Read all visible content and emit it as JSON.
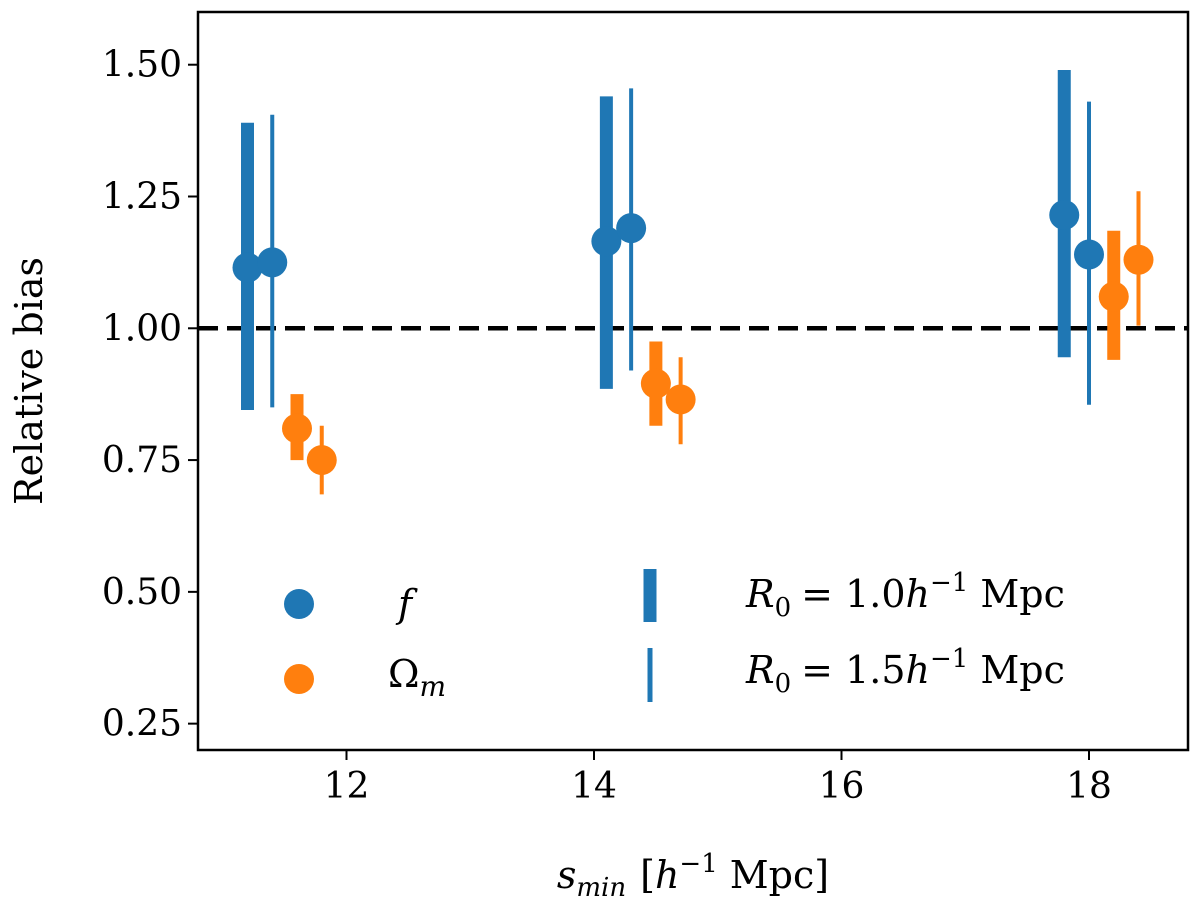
{
  "chart_data": {
    "type": "scatter",
    "subtype": "errorbar",
    "title": "",
    "xlabel": {
      "var": "s",
      "sub": "min",
      "unit_open": "[",
      "h": "h",
      "exp": "−1",
      "unit": "Mpc",
      "unit_close": "]"
    },
    "ylabel": "Relative bias",
    "xlim": [
      10.8,
      18.8
    ],
    "ylim": [
      0.2,
      1.6
    ],
    "xticks": [
      12,
      14,
      16,
      18
    ],
    "xtick_labels": [
      "12",
      "14",
      "16",
      "18"
    ],
    "yticks": [
      0.25,
      0.5,
      0.75,
      1.0,
      1.25,
      1.5
    ],
    "ytick_labels": [
      "0.25",
      "0.50",
      "0.75",
      "1.00",
      "1.25",
      "1.50"
    ],
    "reference_line": {
      "y": 1.0,
      "style": "dashed",
      "color": "#000000"
    },
    "colors": {
      "f": "#1f77b4",
      "omega_m": "#ff7f0e"
    },
    "series": [
      {
        "name": "f",
        "param": "f",
        "R0": "1.0",
        "style": "thick",
        "color": "#1f77b4",
        "points": [
          {
            "x": 11.2,
            "y": 1.115,
            "ylo": 0.845,
            "yhi": 1.39
          },
          {
            "x": 14.1,
            "y": 1.165,
            "ylo": 0.885,
            "yhi": 1.44
          },
          {
            "x": 17.8,
            "y": 1.215,
            "ylo": 0.945,
            "yhi": 1.49
          }
        ]
      },
      {
        "name": "f",
        "param": "f",
        "R0": "1.5",
        "style": "thin",
        "color": "#1f77b4",
        "points": [
          {
            "x": 11.4,
            "y": 1.125,
            "ylo": 0.85,
            "yhi": 1.405
          },
          {
            "x": 14.3,
            "y": 1.19,
            "ylo": 0.92,
            "yhi": 1.455
          },
          {
            "x": 18.0,
            "y": 1.14,
            "ylo": 0.855,
            "yhi": 1.43
          }
        ]
      },
      {
        "name": "Ωm",
        "param": "omega_m",
        "R0": "1.0",
        "style": "thick",
        "color": "#ff7f0e",
        "points": [
          {
            "x": 11.6,
            "y": 0.81,
            "ylo": 0.75,
            "yhi": 0.875
          },
          {
            "x": 14.5,
            "y": 0.895,
            "ylo": 0.815,
            "yhi": 0.975
          },
          {
            "x": 18.2,
            "y": 1.06,
            "ylo": 0.94,
            "yhi": 1.185
          }
        ]
      },
      {
        "name": "Ωm",
        "param": "omega_m",
        "R0": "1.5",
        "style": "thin",
        "color": "#ff7f0e",
        "points": [
          {
            "x": 11.8,
            "y": 0.75,
            "ylo": 0.685,
            "yhi": 0.815
          },
          {
            "x": 14.7,
            "y": 0.865,
            "ylo": 0.78,
            "yhi": 0.945
          },
          {
            "x": 18.4,
            "y": 1.13,
            "ylo": 1.005,
            "yhi": 1.26
          }
        ]
      }
    ],
    "legend": {
      "placement": "lower",
      "markers": [
        {
          "label_main": "f",
          "label_sub": "",
          "color": "#1f77b4"
        },
        {
          "label_main": "Ω",
          "label_sub": "m",
          "color": "#ff7f0e"
        }
      ],
      "bars": [
        {
          "style": "thick",
          "label_var": "R",
          "label_sub": "0",
          "label_eq": "= 1.0",
          "label_h": "h",
          "label_exp": "−1",
          "label_unit": "Mpc"
        },
        {
          "style": "thin",
          "label_var": "R",
          "label_sub": "0",
          "label_eq": "= 1.5",
          "label_h": "h",
          "label_exp": "−1",
          "label_unit": "Mpc"
        }
      ]
    }
  }
}
